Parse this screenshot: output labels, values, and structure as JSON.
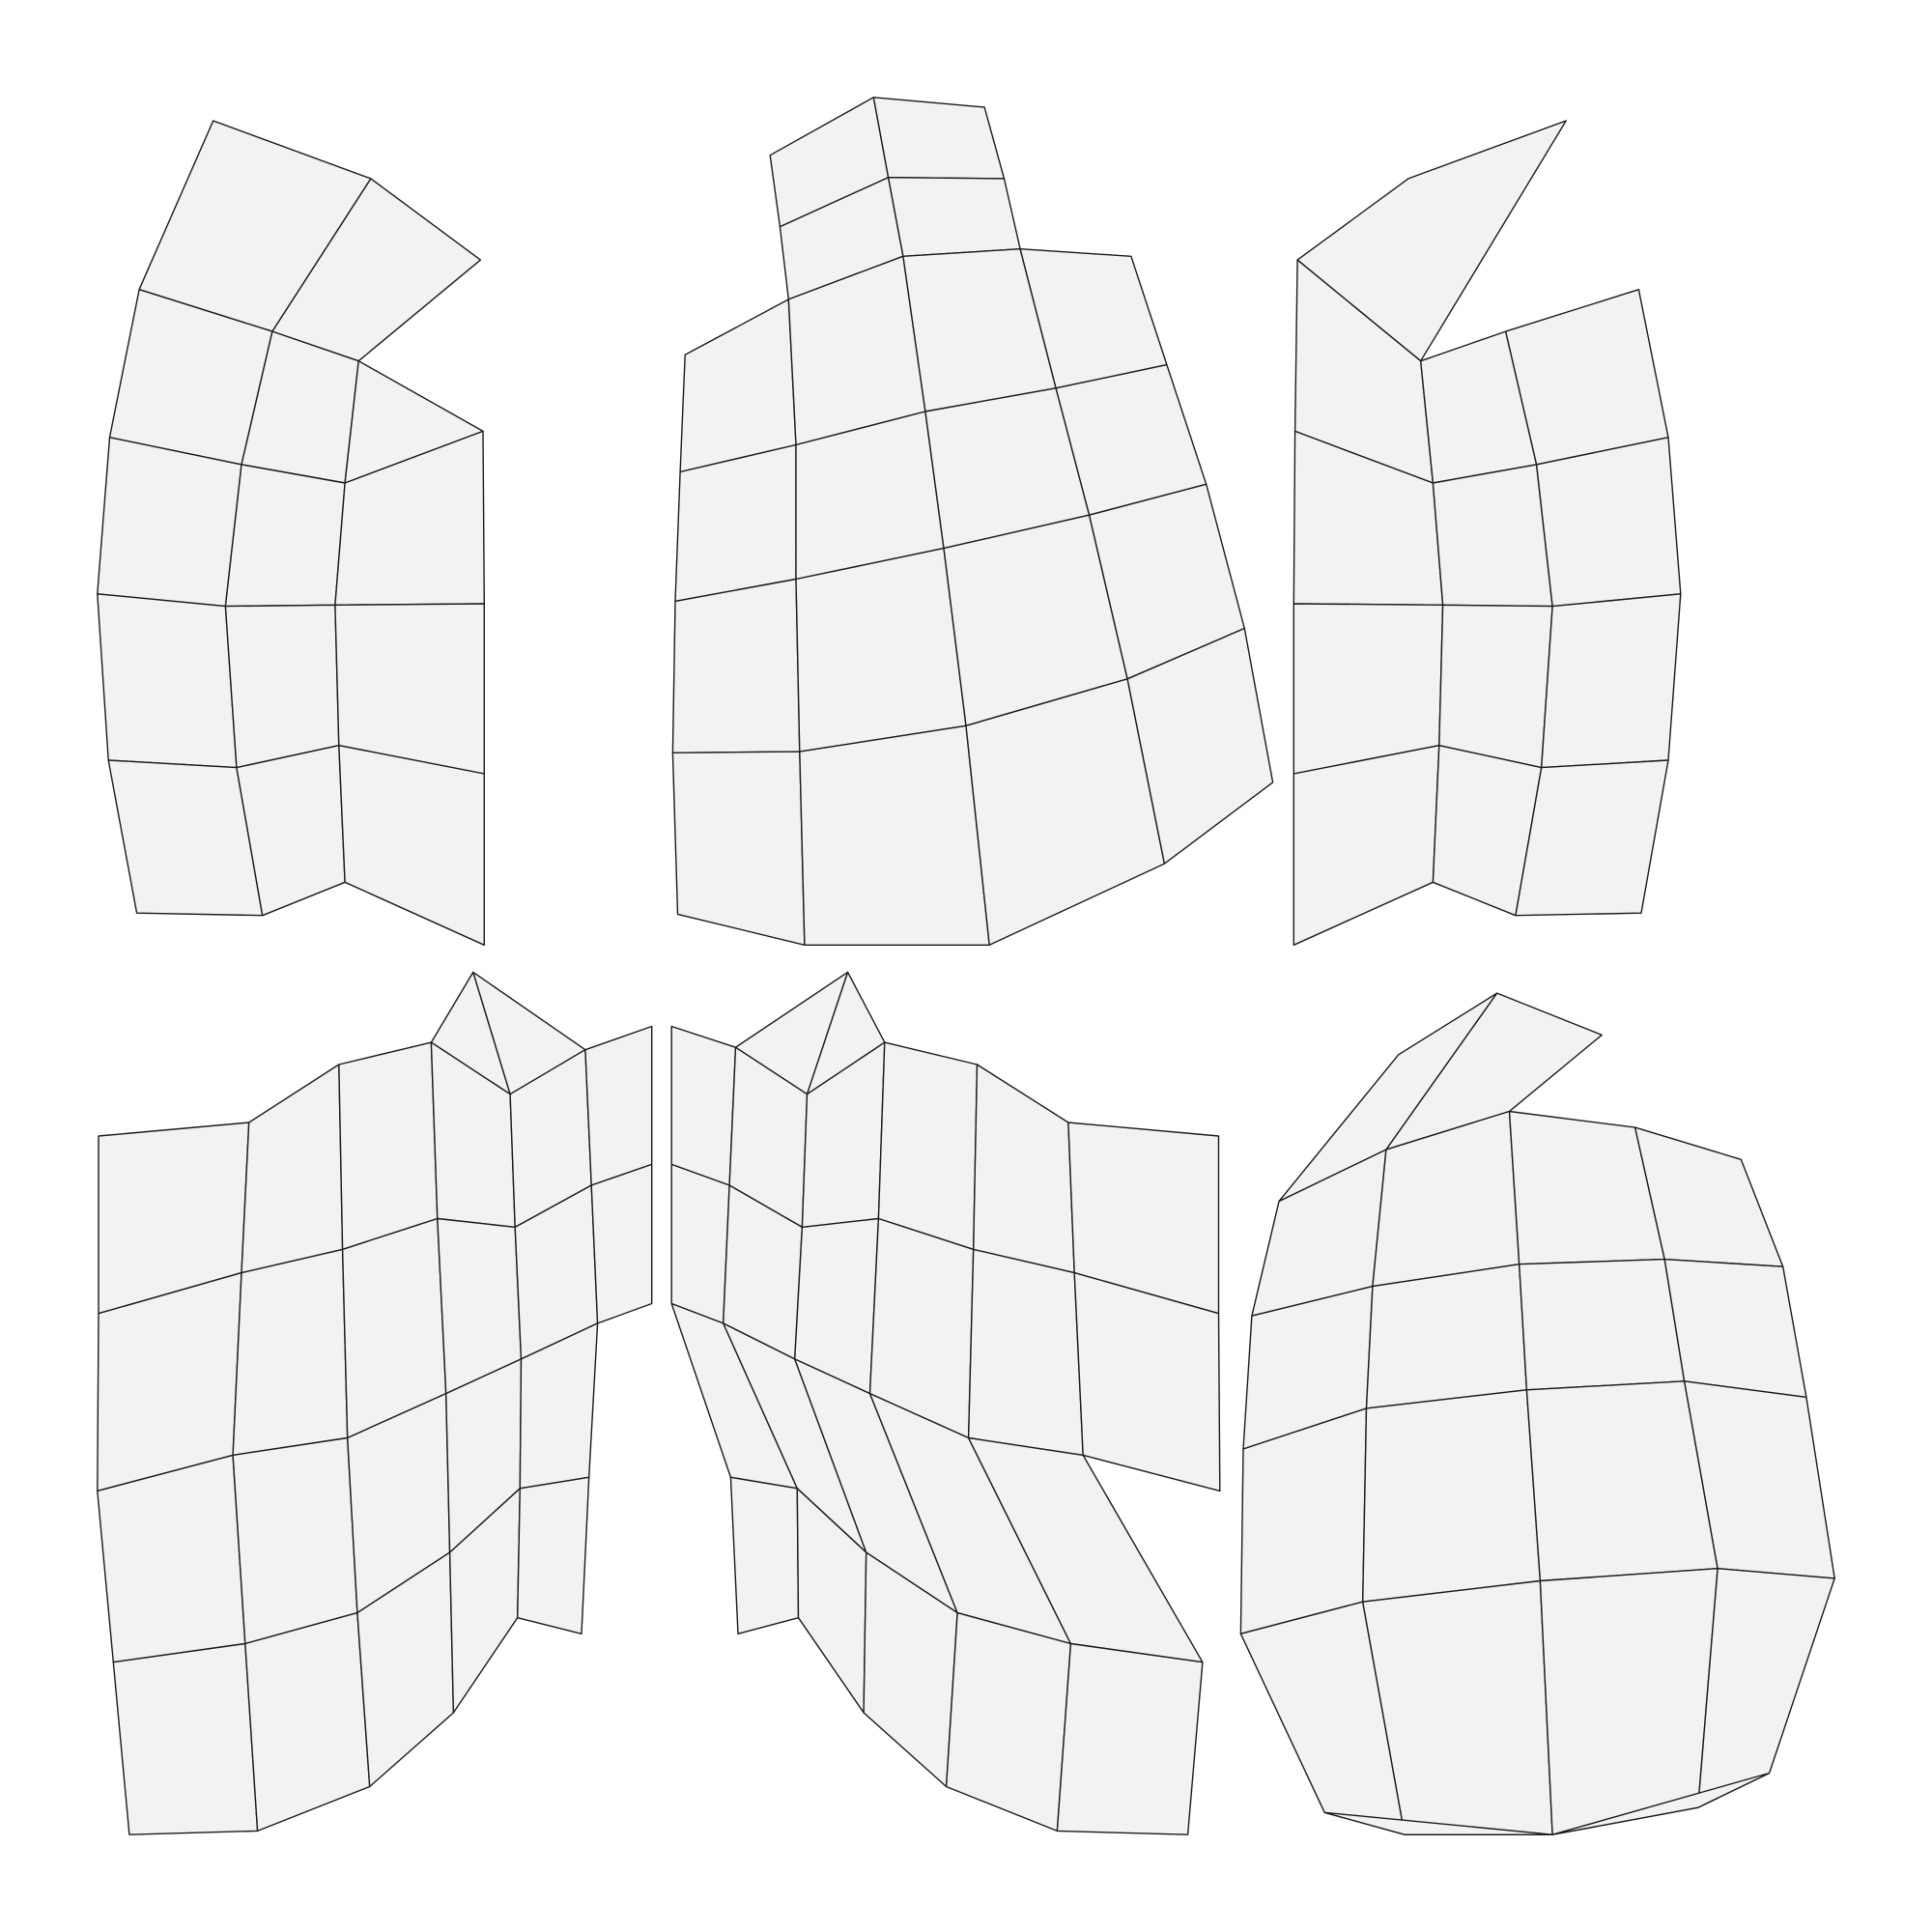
{
  "colors": {
    "background": "#ffffff",
    "island_fill": "#f2f2f2",
    "edge_stroke": "#1a1a1a"
  }
}
